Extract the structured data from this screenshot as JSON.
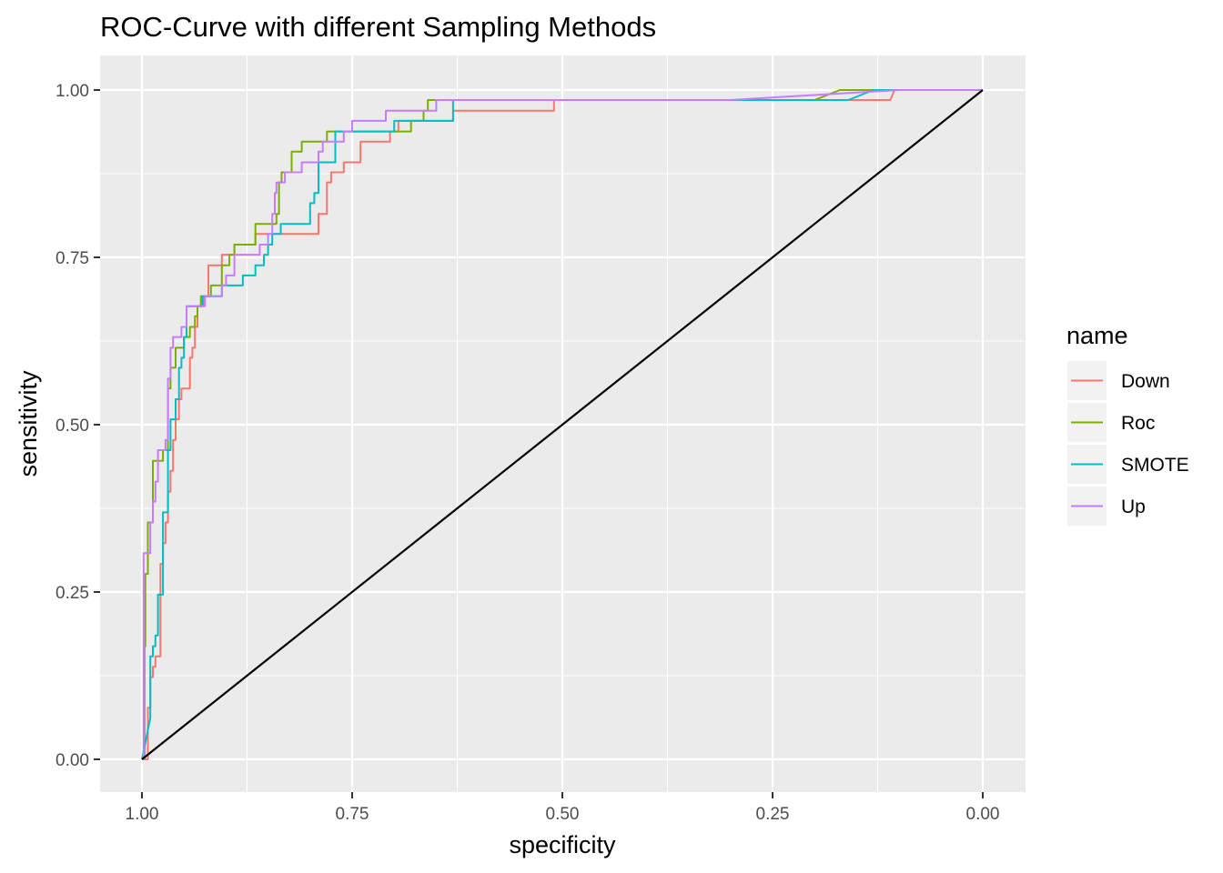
{
  "chart_data": {
    "type": "line",
    "title": "ROC-Curve with different Sampling Methods",
    "xlabel": "specificity",
    "ylabel": "sensitivity",
    "xlim": [
      1.0,
      0.0
    ],
    "ylim": [
      0.0,
      1.0
    ],
    "x_reversed": true,
    "grid": true,
    "x_ticks": [
      {
        "value": 1.0,
        "label": "1.00"
      },
      {
        "value": 0.75,
        "label": "0.75"
      },
      {
        "value": 0.5,
        "label": "0.50"
      },
      {
        "value": 0.25,
        "label": "0.25"
      },
      {
        "value": 0.0,
        "label": "0.00"
      }
    ],
    "y_ticks": [
      {
        "value": 0.0,
        "label": "0.00"
      },
      {
        "value": 0.25,
        "label": "0.25"
      },
      {
        "value": 0.5,
        "label": "0.50"
      },
      {
        "value": 0.75,
        "label": "0.75"
      },
      {
        "value": 1.0,
        "label": "1.00"
      }
    ],
    "legend": {
      "title": "name",
      "position": "right"
    },
    "reference_line": {
      "color": "#000000",
      "points": [
        [
          1.0,
          0.0
        ],
        [
          0.0,
          1.0
        ]
      ]
    },
    "series": [
      {
        "name": "Down",
        "color": "#F8766D",
        "points": [
          [
            1.0,
            0.0
          ],
          [
            0.993,
            0.0
          ],
          [
            0.993,
            0.077
          ],
          [
            0.99,
            0.077
          ],
          [
            0.99,
            0.123
          ],
          [
            0.987,
            0.123
          ],
          [
            0.987,
            0.138
          ],
          [
            0.984,
            0.138
          ],
          [
            0.984,
            0.154
          ],
          [
            0.978,
            0.154
          ],
          [
            0.978,
            0.292
          ],
          [
            0.975,
            0.292
          ],
          [
            0.975,
            0.323
          ],
          [
            0.972,
            0.323
          ],
          [
            0.972,
            0.354
          ],
          [
            0.969,
            0.354
          ],
          [
            0.969,
            0.4
          ],
          [
            0.966,
            0.4
          ],
          [
            0.966,
            0.431
          ],
          [
            0.963,
            0.431
          ],
          [
            0.963,
            0.477
          ],
          [
            0.96,
            0.477
          ],
          [
            0.96,
            0.508
          ],
          [
            0.956,
            0.508
          ],
          [
            0.956,
            0.538
          ],
          [
            0.953,
            0.538
          ],
          [
            0.953,
            0.554
          ],
          [
            0.943,
            0.554
          ],
          [
            0.943,
            0.6
          ],
          [
            0.94,
            0.6
          ],
          [
            0.94,
            0.615
          ],
          [
            0.937,
            0.615
          ],
          [
            0.937,
            0.646
          ],
          [
            0.934,
            0.646
          ],
          [
            0.934,
            0.677
          ],
          [
            0.927,
            0.677
          ],
          [
            0.927,
            0.692
          ],
          [
            0.921,
            0.692
          ],
          [
            0.921,
            0.738
          ],
          [
            0.905,
            0.738
          ],
          [
            0.905,
            0.754
          ],
          [
            0.89,
            0.754
          ],
          [
            0.89,
            0.769
          ],
          [
            0.865,
            0.769
          ],
          [
            0.865,
            0.785
          ],
          [
            0.79,
            0.785
          ],
          [
            0.79,
            0.815
          ],
          [
            0.78,
            0.815
          ],
          [
            0.78,
            0.862
          ],
          [
            0.775,
            0.862
          ],
          [
            0.775,
            0.877
          ],
          [
            0.76,
            0.877
          ],
          [
            0.76,
            0.892
          ],
          [
            0.74,
            0.892
          ],
          [
            0.74,
            0.923
          ],
          [
            0.705,
            0.923
          ],
          [
            0.705,
            0.938
          ],
          [
            0.695,
            0.938
          ],
          [
            0.695,
            0.954
          ],
          [
            0.63,
            0.954
          ],
          [
            0.63,
            0.969
          ],
          [
            0.51,
            0.969
          ],
          [
            0.51,
            0.985
          ],
          [
            0.11,
            0.985
          ],
          [
            0.105,
            1.0
          ],
          [
            0.0,
            1.0
          ]
        ]
      },
      {
        "name": "Roc",
        "color": "#7CAE00",
        "points": [
          [
            1.0,
            0.0
          ],
          [
            0.997,
            0.0
          ],
          [
            0.997,
            0.169
          ],
          [
            0.996,
            0.169
          ],
          [
            0.996,
            0.277
          ],
          [
            0.993,
            0.277
          ],
          [
            0.993,
            0.354
          ],
          [
            0.987,
            0.354
          ],
          [
            0.987,
            0.446
          ],
          [
            0.975,
            0.446
          ],
          [
            0.975,
            0.462
          ],
          [
            0.969,
            0.462
          ],
          [
            0.969,
            0.554
          ],
          [
            0.966,
            0.554
          ],
          [
            0.966,
            0.585
          ],
          [
            0.96,
            0.585
          ],
          [
            0.96,
            0.615
          ],
          [
            0.95,
            0.615
          ],
          [
            0.95,
            0.631
          ],
          [
            0.943,
            0.631
          ],
          [
            0.943,
            0.646
          ],
          [
            0.937,
            0.646
          ],
          [
            0.937,
            0.662
          ],
          [
            0.934,
            0.662
          ],
          [
            0.934,
            0.677
          ],
          [
            0.93,
            0.677
          ],
          [
            0.93,
            0.692
          ],
          [
            0.918,
            0.692
          ],
          [
            0.918,
            0.708
          ],
          [
            0.905,
            0.708
          ],
          [
            0.905,
            0.738
          ],
          [
            0.896,
            0.738
          ],
          [
            0.896,
            0.754
          ],
          [
            0.89,
            0.754
          ],
          [
            0.89,
            0.769
          ],
          [
            0.865,
            0.769
          ],
          [
            0.865,
            0.8
          ],
          [
            0.84,
            0.8
          ],
          [
            0.84,
            0.815
          ],
          [
            0.837,
            0.815
          ],
          [
            0.837,
            0.862
          ],
          [
            0.834,
            0.862
          ],
          [
            0.834,
            0.877
          ],
          [
            0.822,
            0.877
          ],
          [
            0.822,
            0.908
          ],
          [
            0.81,
            0.908
          ],
          [
            0.81,
            0.923
          ],
          [
            0.78,
            0.923
          ],
          [
            0.78,
            0.938
          ],
          [
            0.68,
            0.938
          ],
          [
            0.68,
            0.954
          ],
          [
            0.665,
            0.954
          ],
          [
            0.665,
            0.969
          ],
          [
            0.66,
            0.969
          ],
          [
            0.66,
            0.985
          ],
          [
            0.64,
            0.985
          ],
          [
            0.2,
            0.985
          ],
          [
            0.17,
            1.0
          ],
          [
            0.0,
            1.0
          ]
        ]
      },
      {
        "name": "SMOTE",
        "color": "#00BFC4",
        "points": [
          [
            1.0,
            0.0
          ],
          [
            0.99,
            0.062
          ],
          [
            0.99,
            0.154
          ],
          [
            0.987,
            0.154
          ],
          [
            0.987,
            0.169
          ],
          [
            0.984,
            0.169
          ],
          [
            0.984,
            0.185
          ],
          [
            0.981,
            0.185
          ],
          [
            0.981,
            0.246
          ],
          [
            0.975,
            0.246
          ],
          [
            0.975,
            0.369
          ],
          [
            0.969,
            0.369
          ],
          [
            0.969,
            0.462
          ],
          [
            0.966,
            0.462
          ],
          [
            0.966,
            0.508
          ],
          [
            0.96,
            0.508
          ],
          [
            0.96,
            0.538
          ],
          [
            0.956,
            0.538
          ],
          [
            0.956,
            0.585
          ],
          [
            0.953,
            0.585
          ],
          [
            0.953,
            0.6
          ],
          [
            0.95,
            0.6
          ],
          [
            0.95,
            0.631
          ],
          [
            0.947,
            0.631
          ],
          [
            0.947,
            0.677
          ],
          [
            0.928,
            0.677
          ],
          [
            0.928,
            0.692
          ],
          [
            0.905,
            0.692
          ],
          [
            0.905,
            0.708
          ],
          [
            0.88,
            0.708
          ],
          [
            0.88,
            0.723
          ],
          [
            0.865,
            0.723
          ],
          [
            0.865,
            0.738
          ],
          [
            0.855,
            0.738
          ],
          [
            0.855,
            0.754
          ],
          [
            0.85,
            0.754
          ],
          [
            0.85,
            0.769
          ],
          [
            0.845,
            0.769
          ],
          [
            0.845,
            0.785
          ],
          [
            0.835,
            0.785
          ],
          [
            0.835,
            0.8
          ],
          [
            0.8,
            0.8
          ],
          [
            0.8,
            0.831
          ],
          [
            0.795,
            0.831
          ],
          [
            0.795,
            0.846
          ],
          [
            0.79,
            0.846
          ],
          [
            0.79,
            0.892
          ],
          [
            0.77,
            0.892
          ],
          [
            0.77,
            0.938
          ],
          [
            0.7,
            0.938
          ],
          [
            0.7,
            0.954
          ],
          [
            0.63,
            0.954
          ],
          [
            0.63,
            0.985
          ],
          [
            0.16,
            0.985
          ],
          [
            0.13,
            1.0
          ],
          [
            0.0,
            1.0
          ]
        ]
      },
      {
        "name": "Up",
        "color": "#C77CFF",
        "points": [
          [
            1.0,
            0.0
          ],
          [
            0.998,
            0.0
          ],
          [
            0.998,
            0.308
          ],
          [
            0.99,
            0.308
          ],
          [
            0.99,
            0.354
          ],
          [
            0.987,
            0.354
          ],
          [
            0.987,
            0.385
          ],
          [
            0.984,
            0.385
          ],
          [
            0.984,
            0.415
          ],
          [
            0.981,
            0.415
          ],
          [
            0.981,
            0.462
          ],
          [
            0.972,
            0.462
          ],
          [
            0.972,
            0.477
          ],
          [
            0.969,
            0.477
          ],
          [
            0.969,
            0.569
          ],
          [
            0.966,
            0.569
          ],
          [
            0.966,
            0.615
          ],
          [
            0.963,
            0.615
          ],
          [
            0.963,
            0.631
          ],
          [
            0.953,
            0.631
          ],
          [
            0.953,
            0.646
          ],
          [
            0.947,
            0.646
          ],
          [
            0.947,
            0.677
          ],
          [
            0.925,
            0.677
          ],
          [
            0.925,
            0.692
          ],
          [
            0.905,
            0.692
          ],
          [
            0.905,
            0.708
          ],
          [
            0.9,
            0.708
          ],
          [
            0.9,
            0.723
          ],
          [
            0.89,
            0.723
          ],
          [
            0.89,
            0.754
          ],
          [
            0.86,
            0.754
          ],
          [
            0.86,
            0.769
          ],
          [
            0.85,
            0.769
          ],
          [
            0.85,
            0.785
          ],
          [
            0.845,
            0.785
          ],
          [
            0.845,
            0.815
          ],
          [
            0.842,
            0.815
          ],
          [
            0.842,
            0.846
          ],
          [
            0.84,
            0.846
          ],
          [
            0.84,
            0.862
          ],
          [
            0.83,
            0.862
          ],
          [
            0.83,
            0.877
          ],
          [
            0.81,
            0.877
          ],
          [
            0.81,
            0.892
          ],
          [
            0.79,
            0.892
          ],
          [
            0.79,
            0.908
          ],
          [
            0.785,
            0.908
          ],
          [
            0.785,
            0.923
          ],
          [
            0.76,
            0.923
          ],
          [
            0.76,
            0.938
          ],
          [
            0.75,
            0.938
          ],
          [
            0.75,
            0.954
          ],
          [
            0.71,
            0.954
          ],
          [
            0.71,
            0.969
          ],
          [
            0.65,
            0.969
          ],
          [
            0.65,
            0.985
          ],
          [
            0.3,
            0.985
          ],
          [
            0.1,
            1.0
          ],
          [
            0.0,
            1.0
          ]
        ]
      }
    ]
  }
}
